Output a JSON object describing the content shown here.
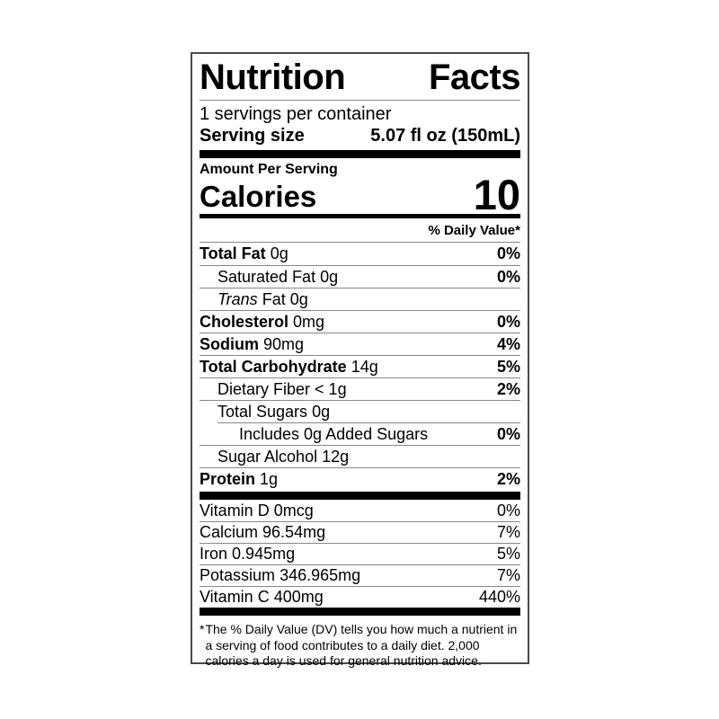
{
  "label": {
    "title_words": [
      "Nutrition",
      "Facts"
    ],
    "servings_per_container": "1 servings per container",
    "serving_size": {
      "label": "Serving size",
      "value": "5.07 fl oz (150mL)"
    },
    "amount_per_serving": "Amount Per Serving",
    "calories": {
      "label": "Calories",
      "value": "10"
    },
    "daily_value_header": "% Daily Value*",
    "nutrients": [
      {
        "name": "Total Fat",
        "amount": "0g",
        "dv": "0%"
      },
      {
        "name": "Saturated Fat",
        "amount": "0g",
        "dv": "0%"
      },
      {
        "name": "Trans",
        "amount": "Fat 0g",
        "dv": ""
      },
      {
        "name": "Cholesterol",
        "amount": "0mg",
        "dv": "0%"
      },
      {
        "name": "Sodium",
        "amount": "90mg",
        "dv": "4%"
      },
      {
        "name": "Total Carbohydrate",
        "amount": "14g",
        "dv": "5%"
      },
      {
        "name": "Dietary Fiber",
        "amount": "< 1g",
        "dv": "2%"
      },
      {
        "name": "Total Sugars",
        "amount": "0g",
        "dv": ""
      },
      {
        "name": "Includes 0g Added Sugars",
        "amount": "",
        "dv": "0%"
      },
      {
        "name": "Sugar Alcohol",
        "amount": "12g",
        "dv": ""
      },
      {
        "name": "Protein",
        "amount": "1g",
        "dv": "2%"
      }
    ],
    "vitamins": [
      {
        "name": "Vitamin D",
        "amount": "0mcg",
        "dv": "0%"
      },
      {
        "name": "Calcium",
        "amount": "96.54mg",
        "dv": "7%"
      },
      {
        "name": "Iron",
        "amount": "0.945mg",
        "dv": "5%"
      },
      {
        "name": "Potassium",
        "amount": "346.965mg",
        "dv": "7%"
      },
      {
        "name": "Vitamin C",
        "amount": "400mg",
        "dv": "440%"
      }
    ],
    "footnote": {
      "star": "*",
      "text": "The % Daily Value (DV) tells you how much a nutrient in a serving of food contributes to a daily diet. 2,000 calories a day is used for general nutrition advice."
    },
    "colors": {
      "ink": "#000000",
      "hairline": "#888888",
      "border": "#4a4a4a"
    }
  }
}
